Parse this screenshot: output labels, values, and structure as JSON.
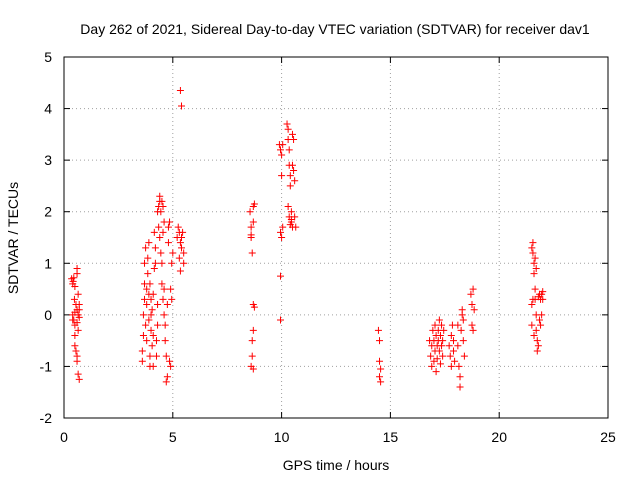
{
  "chart_data": {
    "type": "scatter",
    "title": "Day 262 of 2021, Sidereal Day-to-day VTEC variation (SDTVAR) for receiver dav1",
    "xlabel": "GPS time / hours",
    "ylabel": "SDTVAR / TECUs",
    "xlim": [
      0,
      25
    ],
    "ylim": [
      -2,
      5
    ],
    "xticks": [
      "0",
      "5",
      "10",
      "15",
      "20",
      "25"
    ],
    "yticks": [
      "-2",
      "-1",
      "0",
      "1",
      "2",
      "3",
      "4",
      "5"
    ],
    "grid": true,
    "marker": "+",
    "series": [
      {
        "name": "dav1",
        "color": "#ff0000",
        "points": [
          [
            0.35,
            0.7
          ],
          [
            0.4,
            0.6
          ],
          [
            0.42,
            0.65
          ],
          [
            0.45,
            0.72
          ],
          [
            0.5,
            0.55
          ],
          [
            0.48,
            0.3
          ],
          [
            0.5,
            0.05
          ],
          [
            0.45,
            -0.1
          ],
          [
            0.5,
            -0.2
          ],
          [
            0.5,
            -0.4
          ],
          [
            0.5,
            -0.6
          ],
          [
            0.55,
            -0.7
          ],
          [
            0.6,
            -0.8
          ],
          [
            0.6,
            -0.9
          ],
          [
            0.55,
            0.2
          ],
          [
            0.6,
            0.1
          ],
          [
            0.65,
            0.0
          ],
          [
            0.6,
            -0.15
          ],
          [
            0.65,
            -0.3
          ],
          [
            0.65,
            0.4
          ],
          [
            0.6,
            0.8
          ],
          [
            0.6,
            0.9
          ],
          [
            0.65,
            -1.15
          ],
          [
            0.7,
            -1.25
          ],
          [
            0.7,
            0.2
          ],
          [
            0.7,
            0.1
          ],
          [
            0.7,
            -0.05
          ],
          [
            0.4,
            -0.1
          ],
          [
            0.4,
            0.0
          ],
          [
            3.6,
            -0.7
          ],
          [
            3.6,
            -0.9
          ],
          [
            3.65,
            -0.4
          ],
          [
            3.65,
            0.0
          ],
          [
            3.7,
            0.3
          ],
          [
            3.7,
            0.6
          ],
          [
            3.7,
            1.0
          ],
          [
            3.75,
            1.3
          ],
          [
            3.75,
            -0.2
          ],
          [
            3.8,
            0.5
          ],
          [
            3.8,
            0.2
          ],
          [
            3.8,
            -0.5
          ],
          [
            3.85,
            0.8
          ],
          [
            3.85,
            1.1
          ],
          [
            3.9,
            1.4
          ],
          [
            3.9,
            0.4
          ],
          [
            3.9,
            -0.1
          ],
          [
            3.95,
            0.6
          ],
          [
            3.95,
            -0.8
          ],
          [
            3.95,
            -1.0
          ],
          [
            4.0,
            0.3
          ],
          [
            4.0,
            0.0
          ],
          [
            4.0,
            -0.3
          ],
          [
            4.05,
            -0.6
          ],
          [
            4.05,
            0.1
          ],
          [
            4.1,
            0.4
          ],
          [
            4.1,
            -1.0
          ],
          [
            4.1,
            -0.4
          ],
          [
            4.15,
            1.6
          ],
          [
            4.15,
            0.9
          ],
          [
            4.2,
            1.3
          ],
          [
            4.2,
            1.0
          ],
          [
            4.25,
            -0.5
          ],
          [
            4.25,
            -0.8
          ],
          [
            4.3,
            0.2
          ],
          [
            4.3,
            -0.2
          ],
          [
            4.3,
            2.0
          ],
          [
            4.35,
            2.1
          ],
          [
            4.35,
            1.7
          ],
          [
            4.4,
            2.2
          ],
          [
            4.4,
            2.3
          ],
          [
            4.4,
            1.5
          ],
          [
            4.45,
            2.0
          ],
          [
            4.45,
            1.2
          ],
          [
            4.5,
            2.2
          ],
          [
            4.5,
            1.0
          ],
          [
            4.5,
            0.6
          ],
          [
            4.55,
            2.1
          ],
          [
            4.55,
            1.6
          ],
          [
            4.55,
            0.3
          ],
          [
            4.6,
            1.8
          ],
          [
            4.6,
            0.5
          ],
          [
            4.6,
            0.0
          ],
          [
            4.65,
            -0.2
          ],
          [
            4.65,
            -0.5
          ],
          [
            4.7,
            -0.8
          ],
          [
            4.7,
            -1.3
          ],
          [
            4.75,
            -1.2
          ],
          [
            4.75,
            0.2
          ],
          [
            4.8,
            1.4
          ],
          [
            4.8,
            1.7
          ],
          [
            4.85,
            1.8
          ],
          [
            4.85,
            -0.9
          ],
          [
            4.9,
            -1.0
          ],
          [
            4.9,
            0.5
          ],
          [
            4.95,
            1.0
          ],
          [
            4.95,
            0.3
          ],
          [
            5.0,
            1.2
          ],
          [
            5.2,
            1.5
          ],
          [
            5.25,
            1.7
          ],
          [
            5.3,
            1.6
          ],
          [
            5.35,
            1.4
          ],
          [
            5.4,
            1.5
          ],
          [
            5.4,
            1.3
          ],
          [
            5.45,
            1.6
          ],
          [
            5.5,
            1.2
          ],
          [
            5.5,
            1.0
          ],
          [
            5.3,
            1.1
          ],
          [
            5.35,
            0.85
          ],
          [
            5.35,
            4.35
          ],
          [
            5.4,
            4.05
          ],
          [
            8.55,
            2.0
          ],
          [
            8.6,
            1.7
          ],
          [
            8.6,
            1.5
          ],
          [
            8.65,
            1.2
          ],
          [
            8.7,
            1.8
          ],
          [
            8.7,
            2.1
          ],
          [
            8.75,
            2.15
          ],
          [
            8.6,
            1.55
          ],
          [
            8.7,
            0.2
          ],
          [
            8.75,
            0.15
          ],
          [
            8.7,
            -0.3
          ],
          [
            8.65,
            -0.8
          ],
          [
            8.6,
            -1.0
          ],
          [
            8.7,
            -1.05
          ],
          [
            8.65,
            -0.5
          ],
          [
            9.95,
            0.75
          ],
          [
            9.95,
            -0.1
          ],
          [
            9.9,
            3.3
          ],
          [
            9.95,
            3.2
          ],
          [
            10.0,
            3.1
          ],
          [
            10.05,
            3.3
          ],
          [
            10.0,
            2.7
          ],
          [
            9.95,
            1.6
          ],
          [
            10.0,
            1.5
          ],
          [
            10.05,
            1.7
          ],
          [
            10.25,
            3.7
          ],
          [
            10.3,
            3.6
          ],
          [
            10.3,
            3.4
          ],
          [
            10.35,
            3.2
          ],
          [
            10.35,
            2.9
          ],
          [
            10.4,
            2.7
          ],
          [
            10.4,
            2.5
          ],
          [
            10.45,
            2.0
          ],
          [
            10.45,
            1.8
          ],
          [
            10.5,
            1.7
          ],
          [
            10.5,
            3.5
          ],
          [
            10.55,
            3.4
          ],
          [
            10.55,
            2.8
          ],
          [
            10.6,
            2.6
          ],
          [
            10.6,
            1.9
          ],
          [
            10.65,
            1.7
          ],
          [
            10.3,
            2.1
          ],
          [
            10.35,
            1.9
          ],
          [
            10.4,
            1.75
          ],
          [
            10.45,
            1.85
          ],
          [
            10.5,
            2.9
          ],
          [
            14.45,
            -0.3
          ],
          [
            14.5,
            -0.5
          ],
          [
            14.5,
            -0.9
          ],
          [
            14.55,
            -1.05
          ],
          [
            14.55,
            -1.3
          ],
          [
            14.5,
            -1.2
          ],
          [
            16.8,
            -0.5
          ],
          [
            16.85,
            -0.8
          ],
          [
            16.9,
            -1.0
          ],
          [
            16.9,
            -0.6
          ],
          [
            16.95,
            -0.3
          ],
          [
            17.0,
            -0.9
          ],
          [
            17.0,
            -0.5
          ],
          [
            17.05,
            -0.7
          ],
          [
            17.05,
            -0.2
          ],
          [
            17.1,
            -0.4
          ],
          [
            17.1,
            -1.1
          ],
          [
            17.15,
            -0.6
          ],
          [
            17.15,
            -0.85
          ],
          [
            17.2,
            -0.3
          ],
          [
            17.2,
            -0.5
          ],
          [
            17.25,
            -0.1
          ],
          [
            17.25,
            -0.7
          ],
          [
            17.3,
            -0.4
          ],
          [
            17.3,
            -0.95
          ],
          [
            17.35,
            -0.6
          ],
          [
            17.35,
            -0.2
          ],
          [
            17.4,
            -0.5
          ],
          [
            17.4,
            -0.8
          ],
          [
            17.45,
            -0.3
          ],
          [
            17.7,
            -0.6
          ],
          [
            17.75,
            -0.8
          ],
          [
            17.8,
            -0.4
          ],
          [
            17.8,
            -1.0
          ],
          [
            17.85,
            -0.2
          ],
          [
            17.9,
            -0.7
          ],
          [
            17.9,
            -0.5
          ],
          [
            17.95,
            -0.9
          ],
          [
            18.1,
            -0.2
          ],
          [
            18.1,
            -0.6
          ],
          [
            18.15,
            -1.0
          ],
          [
            18.2,
            -1.2
          ],
          [
            18.2,
            -1.4
          ],
          [
            18.25,
            -0.3
          ],
          [
            18.3,
            0.0
          ],
          [
            18.3,
            0.1
          ],
          [
            18.35,
            -0.1
          ],
          [
            18.35,
            -0.5
          ],
          [
            18.4,
            -0.8
          ],
          [
            18.7,
            0.4
          ],
          [
            18.75,
            0.2
          ],
          [
            18.75,
            -0.2
          ],
          [
            18.8,
            0.5
          ],
          [
            18.8,
            -0.3
          ],
          [
            18.85,
            0.1
          ],
          [
            21.5,
            1.3
          ],
          [
            21.55,
            1.2
          ],
          [
            21.55,
            1.4
          ],
          [
            21.6,
            1.0
          ],
          [
            21.6,
            0.8
          ],
          [
            21.65,
            0.5
          ],
          [
            21.65,
            0.3
          ],
          [
            21.7,
            0.0
          ],
          [
            21.7,
            -0.3
          ],
          [
            21.75,
            -0.5
          ],
          [
            21.75,
            -0.7
          ],
          [
            21.6,
            -0.4
          ],
          [
            21.55,
            0.3
          ],
          [
            21.5,
            0.2
          ],
          [
            21.5,
            -0.2
          ],
          [
            21.65,
            1.1
          ],
          [
            21.7,
            0.9
          ],
          [
            21.8,
            0.35
          ],
          [
            21.85,
            0.4
          ],
          [
            21.9,
            0.3
          ],
          [
            21.95,
            0.4
          ],
          [
            22.0,
            0.3
          ],
          [
            22.0,
            0.45
          ],
          [
            21.85,
            -0.1
          ],
          [
            21.9,
            -0.2
          ],
          [
            21.8,
            -0.6
          ],
          [
            21.95,
            0.0
          ]
        ]
      }
    ]
  }
}
